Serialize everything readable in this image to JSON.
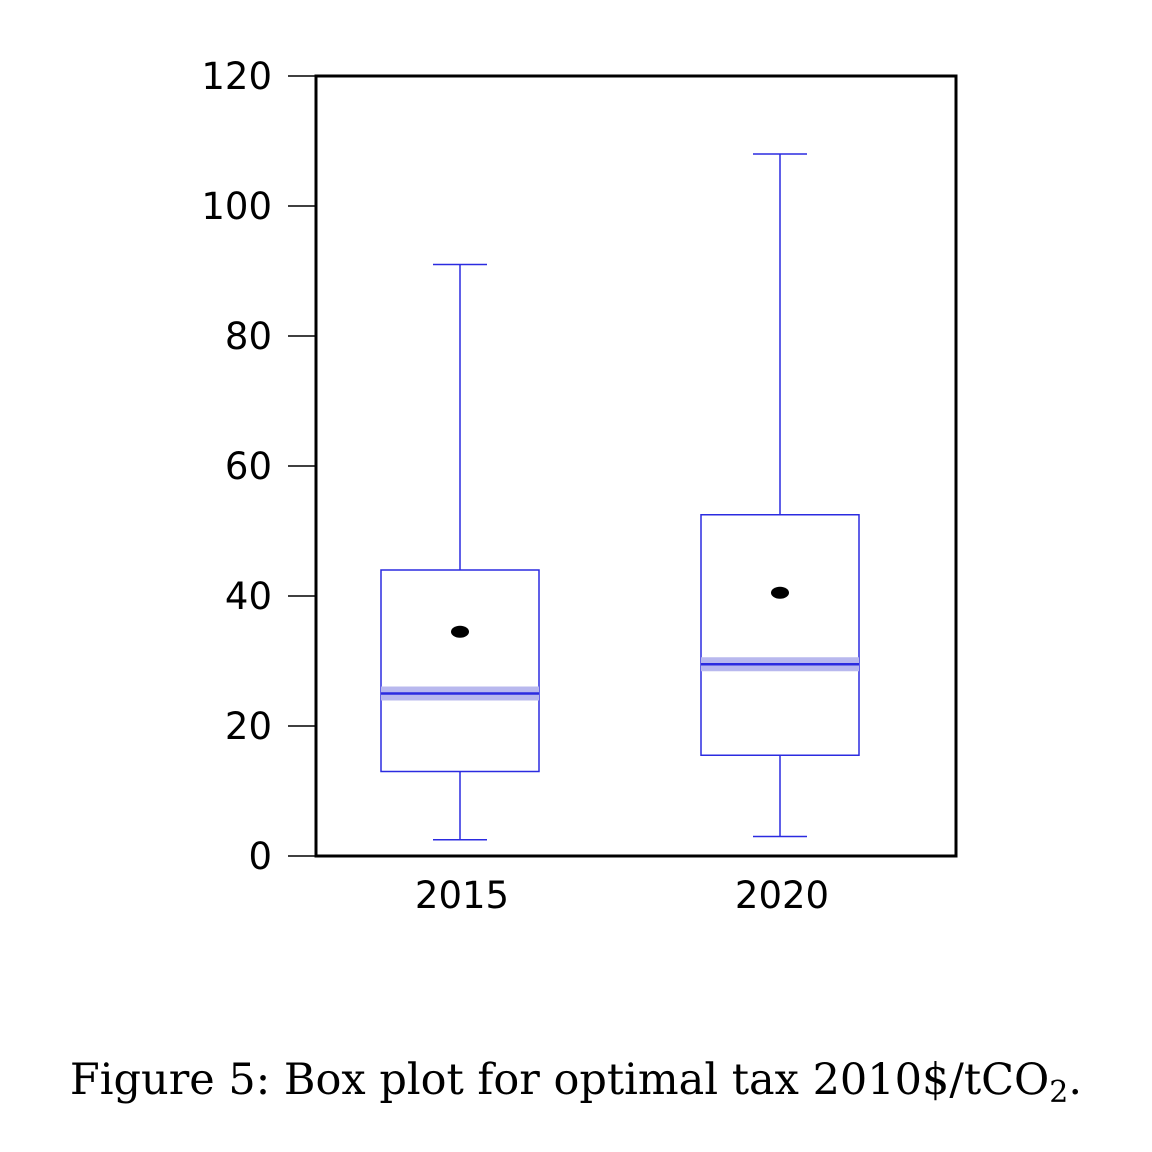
{
  "chart_data": {
    "type": "box",
    "categories": [
      "2015",
      "2020"
    ],
    "ylim": [
      0,
      120
    ],
    "yticks": [
      0,
      20,
      40,
      60,
      80,
      100,
      120
    ],
    "ytick_labels": [
      "0",
      "20",
      "40",
      "60",
      "80",
      "100",
      "120"
    ],
    "grid": false,
    "boxes": [
      {
        "category": "2015",
        "min": 2.5,
        "q1": 13,
        "median": 25,
        "q3": 44,
        "max": 91,
        "mean": 34.5
      },
      {
        "category": "2020",
        "min": 3,
        "q1": 15.5,
        "median": 29.5,
        "q3": 52.5,
        "max": 108,
        "mean": 40.5
      }
    ],
    "colors": {
      "box": "#2b2be0",
      "median_band": "#b8b8ee",
      "mean_marker": "#000000",
      "axis": "#000000"
    }
  },
  "caption": {
    "prefix": "Figure 5: Box plot for optimal tax 2010$/tCO",
    "subscript": "2",
    "suffix": "."
  }
}
